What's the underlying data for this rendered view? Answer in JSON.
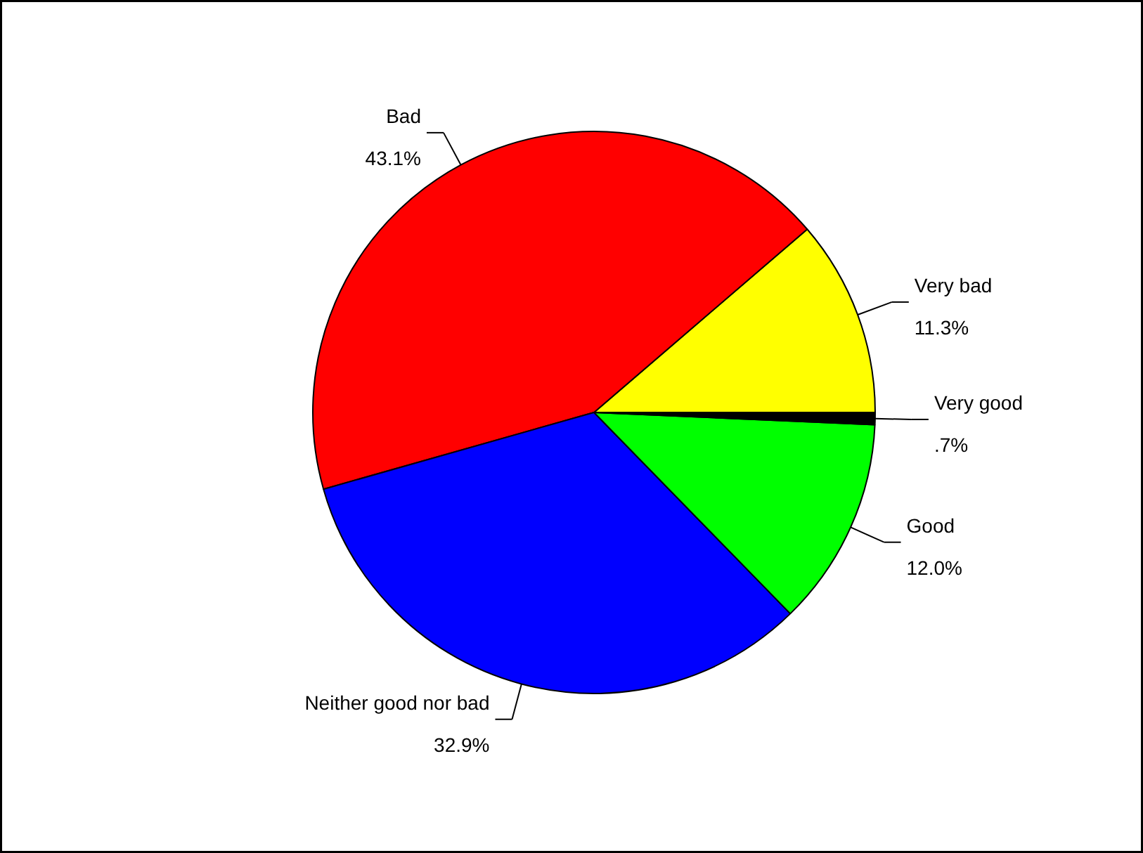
{
  "chart_data": {
    "type": "pie",
    "categories": [
      "Very bad",
      "Bad",
      "Neither good nor bad",
      "Good",
      "Very good"
    ],
    "values": [
      11.3,
      43.1,
      32.9,
      12.0,
      0.7
    ],
    "colors": [
      "#ffff00",
      "#ff0000",
      "#0000ff",
      "#00ff00",
      "#000000"
    ],
    "value_labels": [
      "11.3%",
      "43.1%",
      "32.9%",
      "12.0%",
      ".7%"
    ]
  }
}
